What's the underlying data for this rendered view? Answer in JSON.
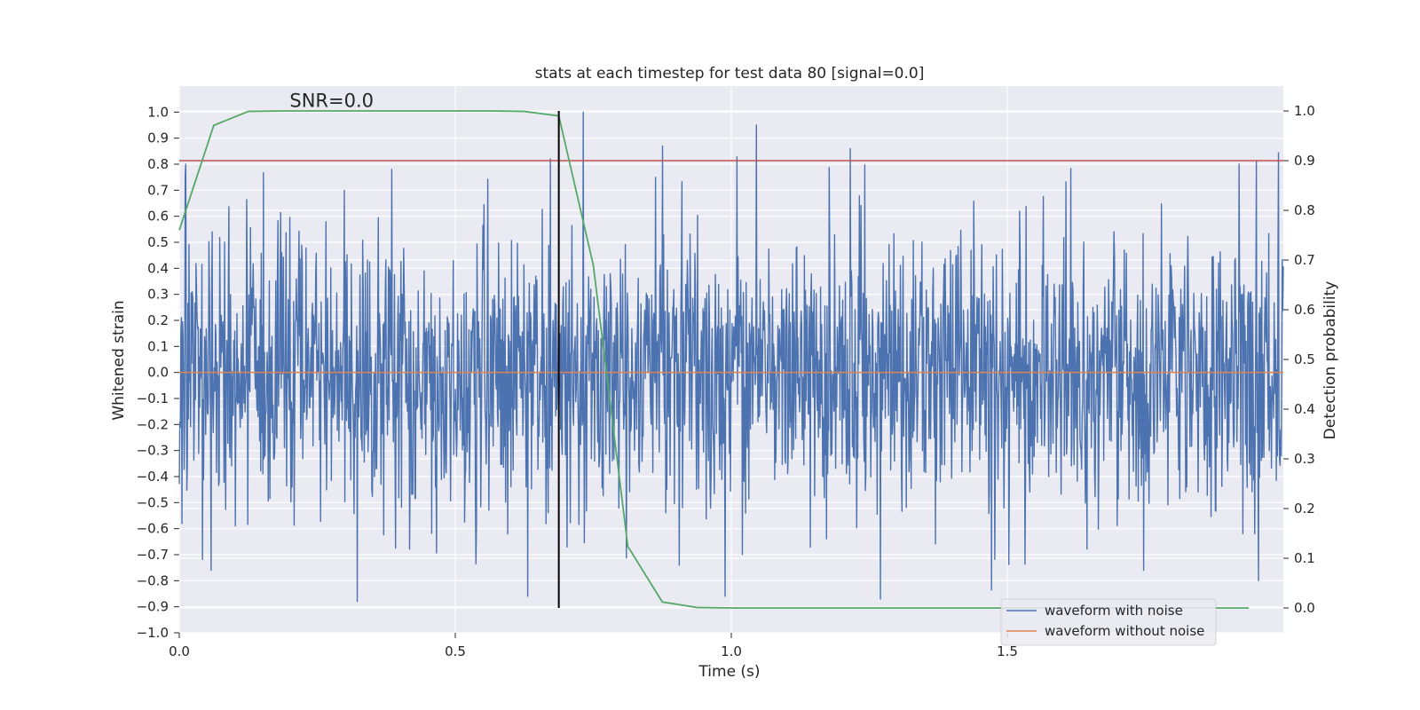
{
  "chart_data": {
    "type": "line",
    "title": "stats at each timestep for test data 80 [signal=0.0]",
    "xlabel": "Time (s)",
    "ylabel": "Whitened strain",
    "y2label": "Detection probability",
    "xlim": [
      0.0,
      2.0
    ],
    "ylim": [
      -1.0,
      1.1
    ],
    "y2lim": [
      -0.05,
      1.05
    ],
    "x_ticks": [
      0.0,
      0.5,
      1.0,
      1.5
    ],
    "x_tick_labels": [
      "0.0",
      "0.5",
      "1.0",
      "1.5"
    ],
    "y_ticks": [
      -1.0,
      -0.9,
      -0.8,
      -0.7,
      -0.6,
      -0.5,
      -0.4,
      -0.3,
      -0.2,
      -0.1,
      0.0,
      0.1,
      0.2,
      0.3,
      0.4,
      0.5,
      0.6,
      0.7,
      0.8,
      0.9,
      1.0
    ],
    "y_tick_labels": [
      "−1.0",
      "−0.9",
      "−0.8",
      "−0.7",
      "−0.6",
      "−0.5",
      "−0.4",
      "−0.3",
      "−0.2",
      "−0.1",
      "0.0",
      "0.1",
      "0.2",
      "0.3",
      "0.4",
      "0.5",
      "0.6",
      "0.7",
      "0.8",
      "0.9",
      "1.0"
    ],
    "y2_ticks": [
      0.0,
      0.1,
      0.2,
      0.3,
      0.4,
      0.5,
      0.6,
      0.7,
      0.8,
      0.9,
      1.0
    ],
    "y2_tick_labels": [
      "0.0",
      "0.1",
      "0.2",
      "0.3",
      "0.4",
      "0.5",
      "0.6",
      "0.7",
      "0.8",
      "0.9",
      "1.0"
    ],
    "annotation": "SNR=0.0",
    "annotation_xy": [
      0.2,
      1.02
    ],
    "series": [
      {
        "name": "waveform with noise",
        "color": "#4c72b0",
        "kind": "noise",
        "n_points": 2048,
        "x_range": [
          0.0,
          2.0
        ],
        "notable_peaks": [
          {
            "x": 0.012,
            "y": 0.8
          },
          {
            "x": 0.385,
            "y": 0.78
          },
          {
            "x": 0.672,
            "y": 0.82
          },
          {
            "x": 0.732,
            "y": 1.0
          },
          {
            "x": 0.875,
            "y": 0.87
          },
          {
            "x": 1.045,
            "y": 0.95
          },
          {
            "x": 1.215,
            "y": 0.86
          },
          {
            "x": 1.92,
            "y": 0.8
          },
          {
            "x": 0.322,
            "y": -0.88
          },
          {
            "x": 1.27,
            "y": -0.87
          },
          {
            "x": 1.955,
            "y": -0.8
          },
          {
            "x": 0.058,
            "y": -0.76
          }
        ]
      },
      {
        "name": "waveform without noise",
        "color": "#dd8452",
        "x": [
          0.0,
          2.0
        ],
        "y": [
          0.0,
          0.0
        ]
      },
      {
        "name": "detection probability",
        "axis": "right",
        "color": "#55a868",
        "x": [
          0.0,
          0.0625,
          0.125,
          0.1875,
          0.25,
          0.3125,
          0.375,
          0.4375,
          0.5,
          0.5625,
          0.625,
          0.6875,
          0.75,
          0.8125,
          0.875,
          0.9375,
          1.0,
          1.0625,
          1.125,
          1.1875,
          1.25,
          1.3125,
          1.375,
          1.4375,
          1.5,
          1.5625,
          1.625,
          1.6875,
          1.75,
          1.8125,
          1.9375
        ],
        "y": [
          0.76,
          0.971,
          0.999,
          1.0,
          1.0,
          1.0,
          1.0,
          1.0,
          1.0,
          1.0,
          0.999,
          0.99,
          0.69,
          0.124,
          0.012,
          0.001,
          0.0,
          0.0,
          0.0,
          0.0,
          0.0,
          0.0,
          0.0,
          0.0,
          0.0,
          0.0,
          0.0,
          0.0,
          0.0,
          0.0,
          0.0
        ]
      }
    ],
    "hlines": [
      {
        "name": "threshold",
        "axis": "right",
        "y": 0.9,
        "color": "#c44e52"
      }
    ],
    "vlines": [
      {
        "name": "detection-time",
        "x": 0.6875,
        "ymin": 0.0,
        "ymax": 1.0,
        "axis": "right",
        "color": "#000000"
      }
    ],
    "legend": {
      "placement": "bottom-right",
      "entries": [
        {
          "label": "waveform with noise",
          "color": "#4c72b0"
        },
        {
          "label": "waveform without noise",
          "color": "#dd8452"
        }
      ]
    },
    "grid": true,
    "background": "#eaeaf2"
  }
}
